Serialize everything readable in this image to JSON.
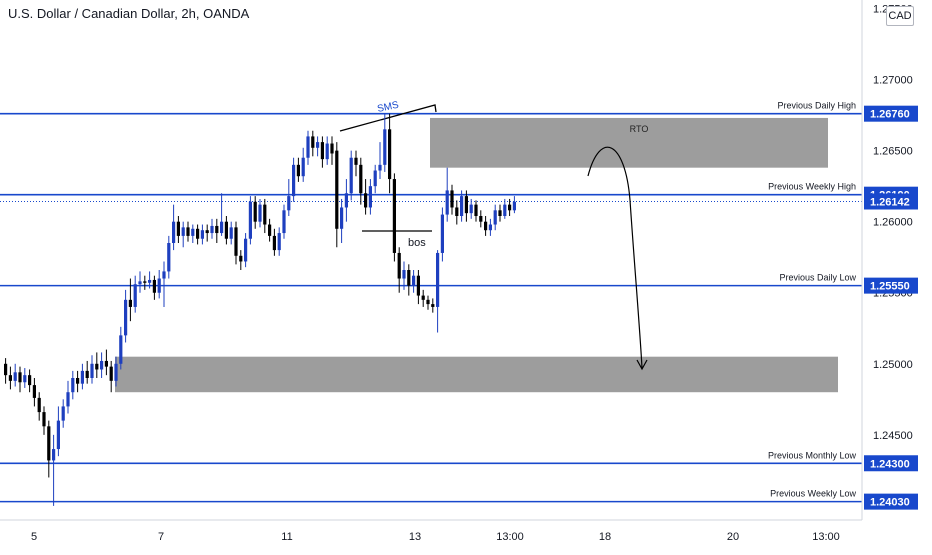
{
  "header": {
    "title": "U.S. Dollar / Canadian Dollar, 2h, OANDA",
    "currency": "CAD"
  },
  "colors": {
    "level_line": "#1848cc",
    "zone_fill": "#8c8c8c",
    "candle_up": "#1e3fbf",
    "candle_down": "#000000",
    "label_bg": "#1848cc",
    "label_text": "#ffffff"
  },
  "chart_data": {
    "type": "candlestick",
    "symbol": "USDCAD",
    "timeframe": "2h",
    "ylim": [
      1.2376,
      1.2756
    ],
    "y_ticks": [
      "1.27500",
      "1.27000",
      "1.26500",
      "1.26000",
      "1.25500",
      "1.25000",
      "1.24500"
    ],
    "x_ticks": [
      "5",
      "7",
      "11",
      "13",
      "13:00",
      "18",
      "20",
      "13:00"
    ],
    "levels": [
      {
        "label": "Previous Daily High",
        "price": "1.26760",
        "value": 1.2676
      },
      {
        "label": "Previous Weekly High",
        "price": "1.26190",
        "value": 1.2619
      },
      {
        "label": "Previous Daily Low",
        "price": "1.25550",
        "value": 1.2555
      },
      {
        "label": "Previous Monthly Low",
        "price": "1.24300",
        "value": 1.243
      },
      {
        "label": "Previous Weekly Low",
        "price": "1.24030",
        "value": 1.2403
      }
    ],
    "current_price": {
      "price": "1.26142",
      "value": 1.26142
    },
    "zones": [
      {
        "label": "RTO",
        "top": 1.2673,
        "bottom": 1.2638
      },
      {
        "label": "",
        "top": 1.2505,
        "bottom": 1.248
      }
    ],
    "annotations": [
      {
        "text": "SMS"
      },
      {
        "text": "bos"
      }
    ],
    "candles": [
      [
        1.25,
        1.2492,
        1.2504,
        1.2486
      ],
      [
        1.2492,
        1.2488,
        1.2498,
        1.2482
      ],
      [
        1.2488,
        1.2494,
        1.25,
        1.2484
      ],
      [
        1.2494,
        1.2487,
        1.2498,
        1.248
      ],
      [
        1.2487,
        1.2492,
        1.2497,
        1.2483
      ],
      [
        1.2492,
        1.2485,
        1.2496,
        1.248
      ],
      [
        1.2485,
        1.2476,
        1.249,
        1.247
      ],
      [
        1.2476,
        1.2466,
        1.248,
        1.246
      ],
      [
        1.2466,
        1.2456,
        1.247,
        1.245
      ],
      [
        1.2456,
        1.2432,
        1.246,
        1.242
      ],
      [
        1.2432,
        1.244,
        1.245,
        1.24
      ],
      [
        1.244,
        1.246,
        1.247,
        1.2435
      ],
      [
        1.246,
        1.247,
        1.2475,
        1.2455
      ],
      [
        1.247,
        1.248,
        1.2488,
        1.2465
      ],
      [
        1.248,
        1.249,
        1.2495,
        1.2475
      ],
      [
        1.249,
        1.2486,
        1.2495,
        1.248
      ],
      [
        1.2486,
        1.2495,
        1.25,
        1.2482
      ],
      [
        1.2495,
        1.249,
        1.2502,
        1.2486
      ],
      [
        1.249,
        1.25,
        1.2506,
        1.2486
      ],
      [
        1.25,
        1.2496,
        1.2508,
        1.249
      ],
      [
        1.2496,
        1.2502,
        1.2508,
        1.249
      ],
      [
        1.2502,
        1.2498,
        1.251,
        1.2492
      ],
      [
        1.2498,
        1.2488,
        1.2502,
        1.248
      ],
      [
        1.2488,
        1.25,
        1.2505,
        1.2484
      ],
      [
        1.25,
        1.252,
        1.2526,
        1.2496
      ],
      [
        1.252,
        1.2545,
        1.2552,
        1.2515
      ],
      [
        1.2545,
        1.254,
        1.256,
        1.253
      ],
      [
        1.254,
        1.2556,
        1.2562,
        1.2536
      ],
      [
        1.2556,
        1.2558,
        1.2565,
        1.255
      ],
      [
        1.2558,
        1.2557,
        1.2562,
        1.2552
      ],
      [
        1.2557,
        1.2559,
        1.2565,
        1.2553
      ],
      [
        1.2559,
        1.255,
        1.2562,
        1.2545
      ],
      [
        1.255,
        1.256,
        1.2566,
        1.2546
      ],
      [
        1.256,
        1.2565,
        1.2572,
        1.254
      ],
      [
        1.2565,
        1.2585,
        1.259,
        1.256
      ],
      [
        1.2585,
        1.26,
        1.2612,
        1.258
      ],
      [
        1.26,
        1.259,
        1.2604,
        1.2585
      ],
      [
        1.259,
        1.2596,
        1.26,
        1.2582
      ],
      [
        1.2596,
        1.259,
        1.26,
        1.2586
      ],
      [
        1.259,
        1.2595,
        1.2598,
        1.2585
      ],
      [
        1.2595,
        1.2588,
        1.2598,
        1.2584
      ],
      [
        1.2588,
        1.2594,
        1.2598,
        1.2584
      ],
      [
        1.2594,
        1.2592,
        1.2598,
        1.2586
      ],
      [
        1.2592,
        1.2597,
        1.2602,
        1.2588
      ],
      [
        1.2597,
        1.2592,
        1.2602,
        1.2585
      ],
      [
        1.2592,
        1.26,
        1.262,
        1.259
      ],
      [
        1.26,
        1.2588,
        1.2604,
        1.2584
      ],
      [
        1.2588,
        1.2596,
        1.26,
        1.2584
      ],
      [
        1.2596,
        1.2576,
        1.26,
        1.257
      ],
      [
        1.2576,
        1.2572,
        1.258,
        1.2566
      ],
      [
        1.2572,
        1.2588,
        1.2592,
        1.2568
      ],
      [
        1.2588,
        1.2614,
        1.2618,
        1.2584
      ],
      [
        1.2614,
        1.26,
        1.2618,
        1.2595
      ],
      [
        1.26,
        1.2612,
        1.2616,
        1.2596
      ],
      [
        1.2612,
        1.2598,
        1.2616,
        1.2592
      ],
      [
        1.2598,
        1.259,
        1.2602,
        1.2586
      ],
      [
        1.259,
        1.258,
        1.2595,
        1.2576
      ],
      [
        1.258,
        1.2592,
        1.2596,
        1.2576
      ],
      [
        1.2592,
        1.2608,
        1.2612,
        1.2588
      ],
      [
        1.2608,
        1.2618,
        1.263,
        1.2604
      ],
      [
        1.2618,
        1.264,
        1.2645,
        1.2614
      ],
      [
        1.264,
        1.2632,
        1.2645,
        1.2628
      ],
      [
        1.2632,
        1.2645,
        1.2652,
        1.2628
      ],
      [
        1.2645,
        1.266,
        1.2664,
        1.264
      ],
      [
        1.266,
        1.2652,
        1.2664,
        1.2646
      ],
      [
        1.2652,
        1.2656,
        1.266,
        1.2646
      ],
      [
        1.2656,
        1.2644,
        1.266,
        1.2638
      ],
      [
        1.2644,
        1.2655,
        1.266,
        1.264
      ],
      [
        1.2655,
        1.2648,
        1.266,
        1.264
      ],
      [
        1.265,
        1.2595,
        1.2656,
        1.2582
      ],
      [
        1.2595,
        1.261,
        1.2616,
        1.2585
      ],
      [
        1.261,
        1.262,
        1.263,
        1.26
      ],
      [
        1.262,
        1.2645,
        1.265,
        1.2615
      ],
      [
        1.2645,
        1.264,
        1.265,
        1.2632
      ],
      [
        1.264,
        1.262,
        1.2645,
        1.2612
      ],
      [
        1.262,
        1.261,
        1.263,
        1.2605
      ],
      [
        1.261,
        1.2625,
        1.263,
        1.2605
      ],
      [
        1.2625,
        1.2636,
        1.264,
        1.262
      ],
      [
        1.2636,
        1.264,
        1.2656,
        1.263
      ],
      [
        1.264,
        1.2665,
        1.2676,
        1.2635
      ],
      [
        1.2665,
        1.263,
        1.2676,
        1.262
      ],
      [
        1.263,
        1.2578,
        1.2634,
        1.2572
      ],
      [
        1.2578,
        1.256,
        1.2582,
        1.255
      ],
      [
        1.256,
        1.2566,
        1.2572,
        1.2552
      ],
      [
        1.2566,
        1.2555,
        1.257,
        1.2548
      ],
      [
        1.2555,
        1.2562,
        1.2566,
        1.255
      ],
      [
        1.2562,
        1.2548,
        1.2566,
        1.2542
      ],
      [
        1.2548,
        1.2545,
        1.2552,
        1.254
      ],
      [
        1.2545,
        1.2542,
        1.2548,
        1.2538
      ],
      [
        1.2542,
        1.254,
        1.2546,
        1.2536
      ],
      [
        1.254,
        1.2578,
        1.258,
        1.2522
      ],
      [
        1.2578,
        1.2605,
        1.261,
        1.2572
      ],
      [
        1.2605,
        1.2622,
        1.2638,
        1.26
      ],
      [
        1.2622,
        1.261,
        1.2626,
        1.2605
      ],
      [
        1.261,
        1.2604,
        1.2615,
        1.2598
      ],
      [
        1.2604,
        1.2618,
        1.2622,
        1.26
      ],
      [
        1.2618,
        1.2606,
        1.2622,
        1.26
      ],
      [
        1.2606,
        1.2612,
        1.2616,
        1.2602
      ],
      [
        1.2612,
        1.2604,
        1.2615,
        1.26
      ],
      [
        1.2604,
        1.26,
        1.2608,
        1.2596
      ],
      [
        1.26,
        1.2594,
        1.2604,
        1.259
      ],
      [
        1.2594,
        1.2598,
        1.2602,
        1.259
      ],
      [
        1.2598,
        1.2608,
        1.2612,
        1.2594
      ],
      [
        1.2608,
        1.2604,
        1.2612,
        1.26
      ],
      [
        1.2604,
        1.2612,
        1.2616,
        1.2602
      ],
      [
        1.2612,
        1.2608,
        1.2616,
        1.2604
      ],
      [
        1.2608,
        1.2614,
        1.2618,
        1.2606
      ]
    ]
  }
}
